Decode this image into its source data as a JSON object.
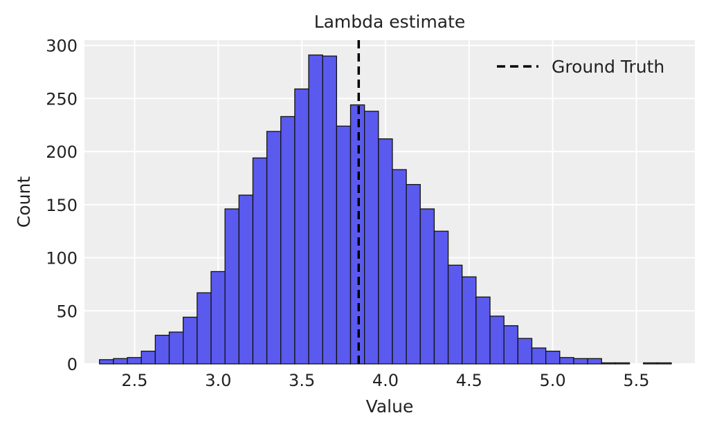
{
  "chart_data": {
    "type": "bar",
    "title": "Lambda estimate",
    "xlabel": "Value",
    "ylabel": "Count",
    "xlim": [
      2.2,
      5.85
    ],
    "ylim": [
      0,
      305
    ],
    "xticks": [
      2.5,
      3.0,
      3.5,
      4.0,
      4.5,
      5.0,
      5.5
    ],
    "xtick_labels": [
      "2.5",
      "3.0",
      "3.5",
      "4.0",
      "4.5",
      "5.0",
      "5.5"
    ],
    "yticks": [
      0,
      50,
      100,
      150,
      200,
      250,
      300
    ],
    "ytick_labels": [
      "0",
      "50",
      "100",
      "150",
      "200",
      "250",
      "300"
    ],
    "grid": true,
    "legend_position": "top-right",
    "bin_start": 2.29,
    "bin_width": 0.0834,
    "values": [
      4,
      5,
      6,
      12,
      27,
      30,
      44,
      67,
      87,
      146,
      159,
      194,
      219,
      233,
      259,
      291,
      290,
      224,
      244,
      238,
      212,
      183,
      169,
      146,
      125,
      93,
      82,
      63,
      45,
      36,
      24,
      15,
      12,
      6,
      5,
      5,
      1,
      1,
      0,
      1,
      1
    ],
    "reference_line": {
      "x": 3.84,
      "label": "Ground Truth",
      "style": "dashed",
      "color": "#000000"
    },
    "colors": {
      "bar_fill": "#5a5aee",
      "bar_edge": "#111111",
      "background": "#eeeeee",
      "grid": "#ffffff"
    }
  }
}
